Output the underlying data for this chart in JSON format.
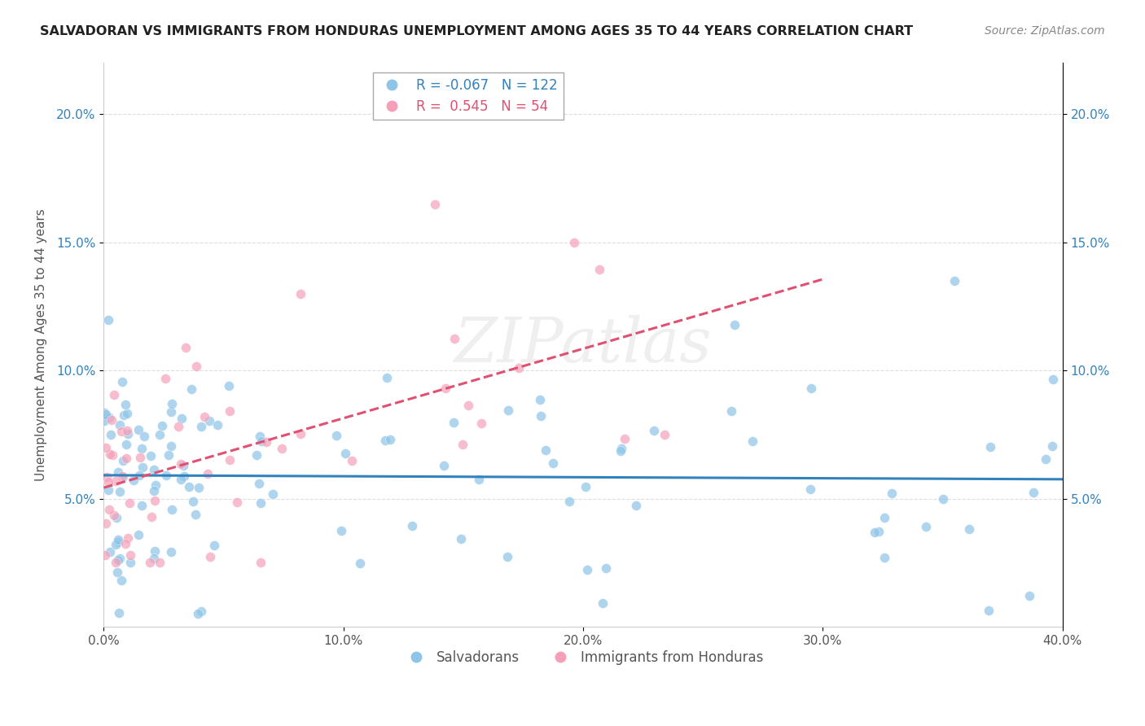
{
  "title": "SALVADORAN VS IMMIGRANTS FROM HONDURAS UNEMPLOYMENT AMONG AGES 35 TO 44 YEARS CORRELATION CHART",
  "source": "Source: ZipAtlas.com",
  "ylabel": "Unemployment Among Ages 35 to 44 years",
  "legend_label_1": "Salvadorans",
  "legend_label_2": "Immigrants from Honduras",
  "r1": -0.067,
  "n1": 122,
  "r2": 0.545,
  "n2": 54,
  "watermark": "ZIPatlas",
  "blue_color": "#8dc4e8",
  "pink_color": "#f5a0b8",
  "blue_line_color": "#3182bd",
  "pink_line_color": "#e05070",
  "xlim": [
    0.0,
    0.4
  ],
  "ylim": [
    0.0,
    0.22
  ],
  "bg_color": "#ffffff",
  "grid_color": "#dddddd",
  "title_fontsize": 11.5,
  "source_fontsize": 10,
  "axis_label_fontsize": 11,
  "tick_fontsize": 11,
  "legend_fontsize": 12
}
